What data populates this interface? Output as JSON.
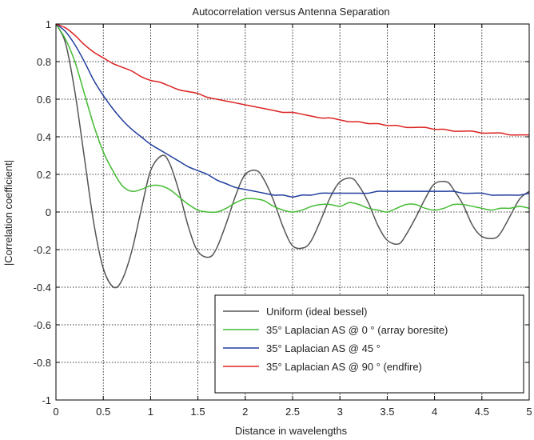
{
  "chart_data": {
    "type": "line",
    "title": "Autocorrelation versus Antenna Separation",
    "xlabel": "Distance in wavelengths",
    "ylabel": "|Correlation coefficient|",
    "xlim": [
      0,
      5
    ],
    "ylim": [
      -1,
      1
    ],
    "xticks": [
      "0",
      "0.5",
      "1",
      "1.5",
      "2",
      "2.5",
      "3",
      "3.5",
      "4",
      "4.5",
      "5"
    ],
    "yticks": [
      "1",
      "0.8",
      "0.6",
      "0.4",
      "0.2",
      "0",
      "-0.2",
      "-0.4",
      "-0.6",
      "-0.8",
      "-1"
    ],
    "grid": true,
    "legend_position": "bottom-right",
    "series": [
      {
        "name": "Uniform (ideal bessel)",
        "color": "#555555",
        "x": [
          0,
          0.1,
          0.2,
          0.3,
          0.4,
          0.5,
          0.61,
          0.7,
          0.8,
          0.9,
          1.0,
          1.12,
          1.2,
          1.3,
          1.4,
          1.5,
          1.62,
          1.7,
          1.8,
          1.9,
          2.0,
          2.12,
          2.2,
          2.3,
          2.4,
          2.5,
          2.62,
          2.7,
          2.8,
          2.9,
          3.0,
          3.12,
          3.2,
          3.3,
          3.4,
          3.5,
          3.62,
          3.7,
          3.8,
          3.9,
          4.0,
          4.13,
          4.2,
          4.3,
          4.4,
          4.5,
          4.63,
          4.7,
          4.8,
          4.9,
          5.0
        ],
        "y": [
          1.0,
          0.9,
          0.64,
          0.29,
          -0.06,
          -0.3,
          -0.4,
          -0.36,
          -0.21,
          0.01,
          0.22,
          0.3,
          0.26,
          0.11,
          -0.08,
          -0.21,
          -0.24,
          -0.19,
          -0.06,
          0.09,
          0.2,
          0.22,
          0.17,
          0.06,
          -0.08,
          -0.18,
          -0.19,
          -0.15,
          -0.04,
          0.08,
          0.16,
          0.18,
          0.14,
          0.05,
          -0.07,
          -0.15,
          -0.17,
          -0.12,
          -0.03,
          0.07,
          0.15,
          0.16,
          0.12,
          0.04,
          -0.07,
          -0.13,
          -0.14,
          -0.11,
          -0.02,
          0.07,
          0.11
        ]
      },
      {
        "name": "35° Laplacian AS @ 0  ° (array boresite)",
        "color": "#44bb33",
        "x": [
          0,
          0.1,
          0.2,
          0.3,
          0.4,
          0.5,
          0.6,
          0.7,
          0.8,
          0.9,
          1.0,
          1.1,
          1.2,
          1.3,
          1.4,
          1.5,
          1.6,
          1.7,
          1.8,
          1.9,
          2.0,
          2.1,
          2.2,
          2.3,
          2.4,
          2.5,
          2.6,
          2.7,
          2.8,
          2.9,
          3.0,
          3.1,
          3.2,
          3.3,
          3.4,
          3.5,
          3.6,
          3.7,
          3.8,
          3.9,
          4.0,
          4.1,
          4.2,
          4.3,
          4.4,
          4.5,
          4.6,
          4.7,
          4.8,
          4.9,
          5.0
        ],
        "y": [
          1.0,
          0.92,
          0.8,
          0.63,
          0.46,
          0.32,
          0.22,
          0.14,
          0.11,
          0.12,
          0.14,
          0.14,
          0.12,
          0.08,
          0.04,
          0.01,
          0.0,
          0.0,
          0.02,
          0.05,
          0.07,
          0.07,
          0.06,
          0.03,
          0.01,
          0.0,
          0.01,
          0.03,
          0.04,
          0.04,
          0.03,
          0.05,
          0.04,
          0.02,
          0.01,
          0.0,
          0.02,
          0.04,
          0.04,
          0.02,
          0.01,
          0.02,
          0.04,
          0.04,
          0.03,
          0.02,
          0.01,
          0.02,
          0.02,
          0.03,
          0.02
        ]
      },
      {
        "name": "35° Laplacian AS @ 45  °",
        "color": "#223f9e",
        "x": [
          0,
          0.1,
          0.2,
          0.3,
          0.4,
          0.5,
          0.6,
          0.7,
          0.8,
          0.9,
          1.0,
          1.1,
          1.2,
          1.3,
          1.4,
          1.5,
          1.6,
          1.7,
          1.8,
          1.9,
          2.0,
          2.1,
          2.2,
          2.3,
          2.4,
          2.5,
          2.6,
          2.7,
          2.8,
          2.9,
          3.0,
          3.1,
          3.2,
          3.3,
          3.4,
          3.5,
          3.6,
          3.7,
          3.8,
          3.9,
          4.0,
          4.1,
          4.2,
          4.3,
          4.4,
          4.5,
          4.6,
          4.7,
          4.8,
          4.9,
          5.0
        ],
        "y": [
          1.0,
          0.96,
          0.89,
          0.8,
          0.7,
          0.62,
          0.55,
          0.49,
          0.44,
          0.4,
          0.36,
          0.33,
          0.3,
          0.27,
          0.24,
          0.22,
          0.2,
          0.17,
          0.15,
          0.13,
          0.12,
          0.11,
          0.1,
          0.09,
          0.09,
          0.08,
          0.09,
          0.09,
          0.1,
          0.1,
          0.1,
          0.1,
          0.1,
          0.1,
          0.11,
          0.11,
          0.11,
          0.11,
          0.11,
          0.11,
          0.11,
          0.11,
          0.11,
          0.1,
          0.1,
          0.1,
          0.09,
          0.09,
          0.09,
          0.09,
          0.1
        ]
      },
      {
        "name": "35° Laplacian AS @ 90  ° (endfire)",
        "color": "#dd2222",
        "x": [
          0,
          0.1,
          0.2,
          0.3,
          0.4,
          0.5,
          0.6,
          0.7,
          0.8,
          0.9,
          1.0,
          1.1,
          1.2,
          1.3,
          1.4,
          1.5,
          1.6,
          1.7,
          1.8,
          1.9,
          2.0,
          2.1,
          2.2,
          2.3,
          2.4,
          2.5,
          2.6,
          2.7,
          2.8,
          2.9,
          3.0,
          3.1,
          3.2,
          3.3,
          3.4,
          3.5,
          3.6,
          3.7,
          3.8,
          3.9,
          4.0,
          4.1,
          4.2,
          4.3,
          4.4,
          4.5,
          4.6,
          4.7,
          4.8,
          4.9,
          5.0
        ],
        "y": [
          1.0,
          0.98,
          0.94,
          0.89,
          0.85,
          0.82,
          0.79,
          0.77,
          0.75,
          0.72,
          0.7,
          0.69,
          0.67,
          0.65,
          0.64,
          0.63,
          0.61,
          0.6,
          0.59,
          0.58,
          0.57,
          0.56,
          0.55,
          0.54,
          0.53,
          0.53,
          0.52,
          0.51,
          0.5,
          0.5,
          0.49,
          0.48,
          0.48,
          0.47,
          0.47,
          0.46,
          0.46,
          0.45,
          0.45,
          0.45,
          0.44,
          0.44,
          0.43,
          0.43,
          0.43,
          0.42,
          0.42,
          0.42,
          0.41,
          0.41,
          0.41
        ]
      }
    ]
  }
}
